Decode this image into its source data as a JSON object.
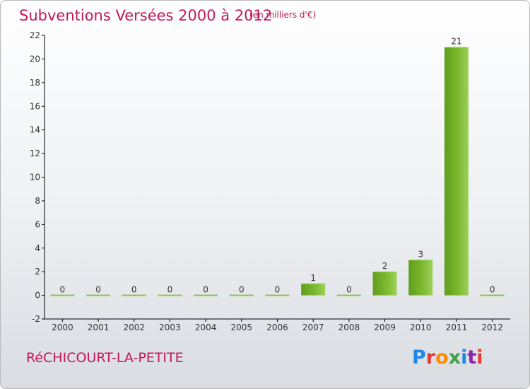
{
  "header": {
    "title": "Subventions Versées 2000 à 2012",
    "subtitle": "(en milliers d'€)"
  },
  "footer": {
    "commune": "RéCHICOURT-LA-PETITE",
    "brand": "Proxiti",
    "brand_colors": [
      "#1e88e5",
      "#e53935",
      "#fb8c00",
      "#43a047",
      "#1e88e5",
      "#8e24aa",
      "#e53935"
    ]
  },
  "chart_data": {
    "type": "bar",
    "title": "Subventions Versées 2000 à 2012",
    "subtitle": "(en milliers d'€)",
    "categories": [
      "2000",
      "2001",
      "2002",
      "2003",
      "2004",
      "2005",
      "2006",
      "2007",
      "2008",
      "2009",
      "2010",
      "2011",
      "2012"
    ],
    "values": [
      0,
      0,
      0,
      0,
      0,
      0,
      0,
      1,
      0,
      2,
      3,
      21,
      0
    ],
    "data_labels": [
      "0",
      "0",
      "0",
      "0",
      "0",
      "0",
      "0",
      "1",
      "0",
      "2",
      "3",
      "21",
      "0"
    ],
    "ylim": [
      -2,
      22
    ],
    "yticks": [
      -2,
      0,
      2,
      4,
      6,
      8,
      10,
      12,
      14,
      16,
      18,
      20,
      22
    ],
    "grid": false,
    "colors": {
      "bar": "#7cb82f",
      "bar_light": "#a4d65e",
      "bar_dark": "#5a9a1a",
      "axis": "#000000",
      "label": "#333333"
    }
  }
}
